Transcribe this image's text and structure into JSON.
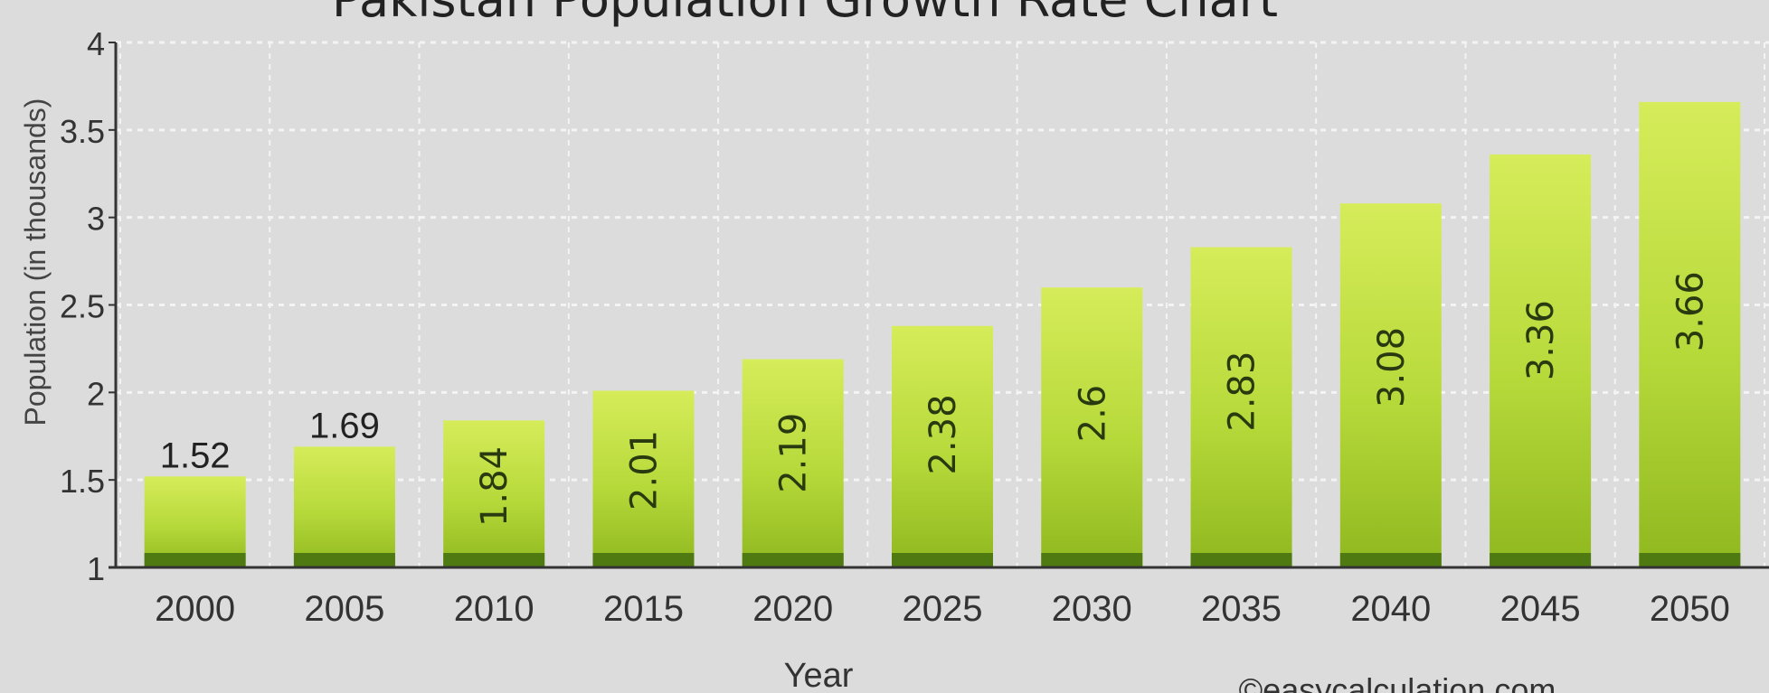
{
  "chart_data": {
    "type": "bar",
    "title": "Pakistan Population Growth Rate Chart",
    "xlabel": "Year",
    "ylabel": "Population (in thousands)",
    "categories": [
      "2000",
      "2005",
      "2010",
      "2015",
      "2020",
      "2025",
      "2030",
      "2035",
      "2040",
      "2045",
      "2050"
    ],
    "values": [
      1.52,
      1.69,
      1.84,
      2.01,
      2.19,
      2.38,
      2.6,
      2.83,
      3.08,
      3.36,
      3.66
    ],
    "value_labels": [
      "1.52",
      "1.69",
      "1.84",
      "2.01",
      "2.19",
      "2.38",
      "2.6",
      "2.83",
      "3.08",
      "3.36",
      "3.66"
    ],
    "ylim": [
      1,
      4
    ],
    "yticks": [
      "1",
      "1.5",
      "2",
      "2.5",
      "3",
      "3.5",
      "4"
    ],
    "ytick_values": [
      1,
      1.5,
      2,
      2.5,
      3,
      3.5,
      4
    ],
    "grid": true,
    "colors": {
      "bar_top": "#d6ec5a",
      "bar_mid": "#a8cc2c",
      "bar_base": "#4f7a12",
      "background": "#dcdcdc",
      "grid": "#f4f4f4",
      "axis": "#333333"
    }
  },
  "footer": {
    "credit": "©easycalculation.com"
  }
}
